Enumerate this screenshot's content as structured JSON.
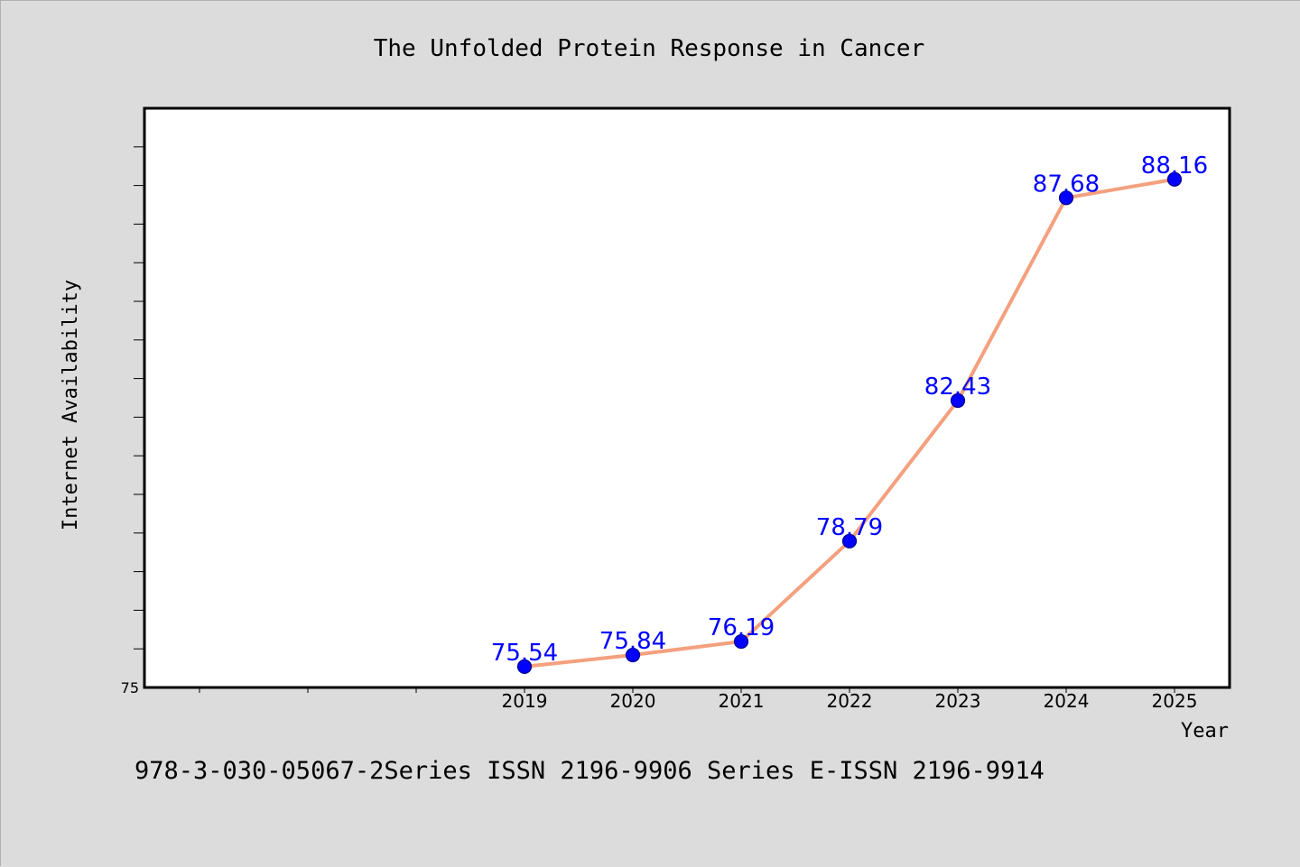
{
  "chart_data": {
    "type": "line",
    "title": "The Unfolded Protein Response in Cancer",
    "xlabel": "Year",
    "ylabel": "Internet Availability",
    "x": [
      "2019",
      "2020",
      "2021",
      "2022",
      "2023",
      "2024",
      "2025"
    ],
    "series": [
      {
        "values": [
          75.54,
          75.84,
          76.19,
          78.79,
          82.43,
          87.68,
          88.16
        ]
      }
    ],
    "data_labels": [
      "75.54",
      "75.84",
      "76.19",
      "78.79",
      "82.43",
      "87.68",
      "88.16"
    ],
    "y_tick_labels": [
      "75"
    ],
    "ylim": [
      75,
      90
    ],
    "grid": false,
    "colors": {
      "line": "#f4a07e",
      "marker": "#0000ff",
      "label": "#0000ff"
    }
  },
  "footer_text": "978-3-030-05067-2Series ISSN 2196-9906 Series E-ISSN 2196-9914"
}
